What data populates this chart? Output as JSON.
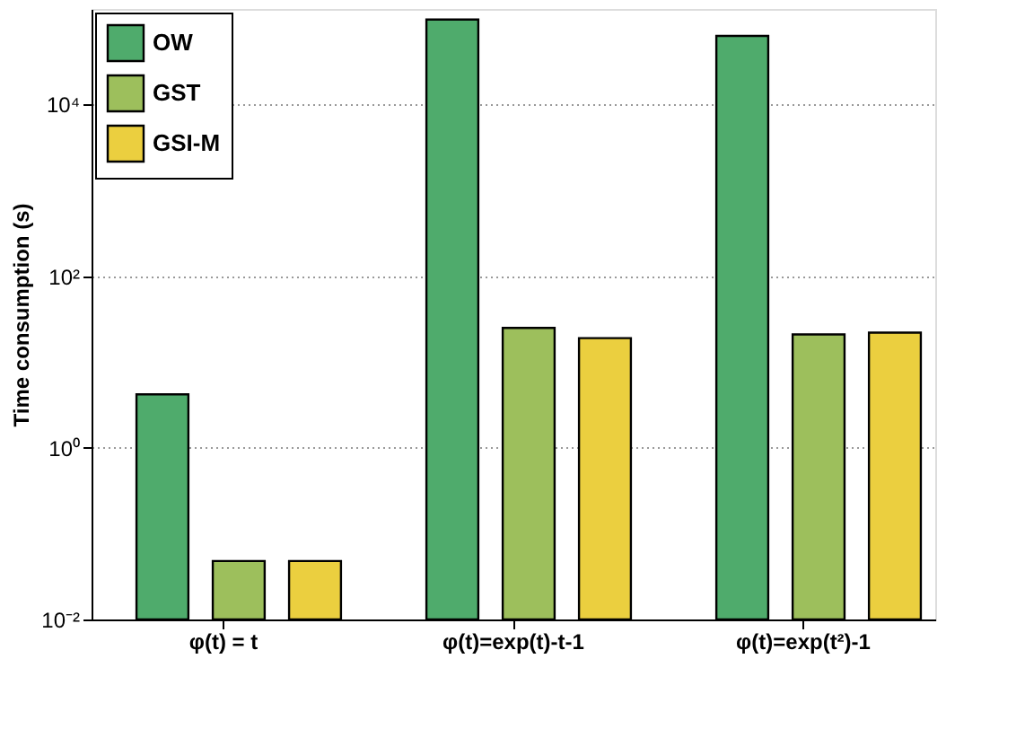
{
  "chart_data": {
    "type": "bar",
    "ylabel": "Time consumption (s)",
    "categories": [
      "φ(t) = t",
      "φ(t)=exp(t)-t-1",
      "φ(t)=exp(t²)-1"
    ],
    "series": [
      {
        "name": "OW",
        "color": "#4fab6c",
        "values": [
          4.2,
          98000,
          63000
        ]
      },
      {
        "name": "GST",
        "color": "#9dbf5c",
        "values": [
          0.048,
          25,
          21
        ]
      },
      {
        "name": "GSI-M",
        "color": "#ebcf3f",
        "values": [
          0.048,
          19,
          22
        ]
      }
    ],
    "log": true,
    "ylim": [
      0.01,
      130000
    ],
    "yticks": [
      {
        "value": 0.01,
        "label": "10⁻²"
      },
      {
        "value": 1,
        "label": "10⁰"
      },
      {
        "value": 100,
        "label": "10²"
      },
      {
        "value": 10000,
        "label": "10⁴"
      }
    ],
    "grid": "y",
    "legend": "top left"
  }
}
